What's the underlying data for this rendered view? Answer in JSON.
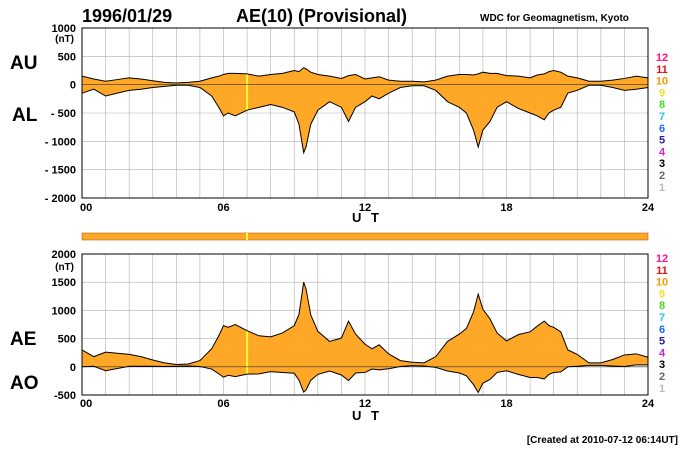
{
  "header": {
    "date": "1996/01/29",
    "title": "AE(10) (Provisional)",
    "organization": "WDC for Geomagnetism, Kyoto"
  },
  "footer": {
    "created": "[Created at 2010-07-12 06:14UT]"
  },
  "colors": {
    "fill": "#ffa726",
    "line": "#000000",
    "grid": "#b0b0b0",
    "marker": "#ffff33"
  },
  "station_count_legend": [
    {
      "label": "12",
      "color": "#ff1493"
    },
    {
      "label": "11",
      "color": "#e8101a"
    },
    {
      "label": "10",
      "color": "#ff9a00"
    },
    {
      "label": "9",
      "color": "#f0e020"
    },
    {
      "label": "8",
      "color": "#44dd22"
    },
    {
      "label": "7",
      "color": "#22c8e8"
    },
    {
      "label": "6",
      "color": "#1a6aff"
    },
    {
      "label": "5",
      "color": "#2a1aa0"
    },
    {
      "label": "4",
      "color": "#cc22cc"
    },
    {
      "label": "3",
      "color": "#000000"
    },
    {
      "label": "2",
      "color": "#666666"
    },
    {
      "label": "1",
      "color": "#bbbbbb"
    }
  ],
  "chart_data": [
    {
      "type": "area",
      "xlabel": "U T",
      "unit": "(nT)",
      "upper_label": "AU",
      "lower_label": "AL",
      "xlim": [
        0,
        24
      ],
      "ylim": [
        -2000,
        1000
      ],
      "x_ticks": [
        "00",
        "06",
        "12",
        "18",
        "24"
      ],
      "y_ticks": [
        "1000",
        "500",
        "0",
        "- 500",
        "- 1000",
        "- 1500",
        "- 2000"
      ],
      "y_tick_values": [
        1000,
        500,
        0,
        -500,
        -1000,
        -1500,
        -2000
      ],
      "marker_hour": 7.0,
      "x": [
        0,
        0.5,
        1,
        1.5,
        2,
        2.5,
        3,
        3.5,
        4,
        4.5,
        5,
        5.5,
        5.8,
        6,
        6.2,
        6.5,
        7,
        7.5,
        8,
        8.5,
        9,
        9.2,
        9.4,
        9.5,
        9.7,
        10,
        10.5,
        11,
        11.3,
        11.6,
        12,
        12.3,
        12.6,
        13,
        13.5,
        14,
        14.5,
        15,
        15.5,
        16,
        16.3,
        16.6,
        16.8,
        17,
        17.3,
        17.6,
        18,
        18.5,
        19,
        19.3,
        19.6,
        19.8,
        20,
        20.3,
        20.6,
        21,
        21.5,
        22,
        22.5,
        23,
        23.5,
        24
      ],
      "series": [
        {
          "name": "AU",
          "values": [
            150,
            100,
            60,
            90,
            120,
            100,
            70,
            40,
            30,
            40,
            60,
            120,
            150,
            180,
            200,
            200,
            190,
            150,
            180,
            200,
            250,
            230,
            300,
            280,
            220,
            180,
            150,
            110,
            160,
            180,
            100,
            120,
            140,
            80,
            60,
            60,
            50,
            80,
            150,
            180,
            180,
            170,
            190,
            220,
            200,
            200,
            160,
            150,
            120,
            170,
            190,
            230,
            250,
            220,
            150,
            120,
            60,
            60,
            80,
            110,
            150,
            120
          ]
        },
        {
          "name": "AL",
          "values": [
            -150,
            -80,
            -200,
            -150,
            -100,
            -80,
            -50,
            -30,
            -10,
            -10,
            -50,
            -200,
            -400,
            -550,
            -500,
            -550,
            -450,
            -400,
            -350,
            -400,
            -480,
            -700,
            -1200,
            -1100,
            -700,
            -450,
            -300,
            -400,
            -650,
            -400,
            -300,
            -200,
            -250,
            -150,
            -50,
            -20,
            -20,
            -100,
            -300,
            -400,
            -500,
            -800,
            -1100,
            -800,
            -650,
            -400,
            -300,
            -420,
            -500,
            -550,
            -620,
            -500,
            -450,
            -400,
            -150,
            -100,
            -10,
            -10,
            -50,
            -100,
            -80,
            -50
          ]
        }
      ]
    },
    {
      "type": "area",
      "xlabel": "U T",
      "unit": "(nT)",
      "upper_label": "AE",
      "lower_label": "AO",
      "xlim": [
        0,
        24
      ],
      "ylim": [
        -500,
        2000
      ],
      "x_ticks": [
        "00",
        "06",
        "12",
        "18",
        "24"
      ],
      "y_ticks": [
        "2000",
        "1500",
        "1000",
        "500",
        "0",
        "-500"
      ],
      "y_tick_values": [
        2000,
        1500,
        1000,
        500,
        0,
        -500
      ],
      "marker_hour": 7.0,
      "x": [
        0,
        0.5,
        1,
        1.5,
        2,
        2.5,
        3,
        3.5,
        4,
        4.5,
        5,
        5.5,
        5.8,
        6,
        6.2,
        6.5,
        7,
        7.5,
        8,
        8.5,
        9,
        9.2,
        9.4,
        9.5,
        9.7,
        10,
        10.5,
        11,
        11.3,
        11.6,
        12,
        12.3,
        12.6,
        13,
        13.5,
        14,
        14.5,
        15,
        15.5,
        16,
        16.3,
        16.6,
        16.8,
        17,
        17.3,
        17.6,
        18,
        18.5,
        19,
        19.3,
        19.6,
        19.8,
        20,
        20.3,
        20.6,
        21,
        21.5,
        22,
        22.5,
        23,
        23.5,
        24
      ],
      "series": [
        {
          "name": "AE",
          "values": [
            300,
            180,
            260,
            240,
            220,
            180,
            120,
            70,
            40,
            50,
            110,
            320,
            550,
            730,
            700,
            750,
            640,
            550,
            530,
            600,
            730,
            930,
            1500,
            1380,
            920,
            630,
            450,
            510,
            810,
            580,
            400,
            320,
            390,
            230,
            110,
            80,
            70,
            180,
            450,
            580,
            680,
            970,
            1290,
            1020,
            850,
            600,
            460,
            570,
            620,
            720,
            810,
            730,
            700,
            620,
            300,
            220,
            70,
            70,
            130,
            210,
            230,
            170
          ]
        },
        {
          "name": "AO",
          "values": [
            0,
            10,
            -70,
            -30,
            10,
            10,
            10,
            5,
            10,
            15,
            5,
            -40,
            -125,
            -185,
            -150,
            -175,
            -130,
            -125,
            -85,
            -100,
            -115,
            -235,
            -450,
            -410,
            -240,
            -135,
            -75,
            -145,
            -245,
            -110,
            -100,
            -40,
            -55,
            -35,
            5,
            20,
            15,
            -10,
            -75,
            -110,
            -160,
            -315,
            -455,
            -290,
            -225,
            -100,
            -70,
            -135,
            -190,
            -190,
            -215,
            -135,
            -100,
            -90,
            0,
            10,
            25,
            25,
            15,
            5,
            35,
            35
          ]
        }
      ]
    }
  ]
}
